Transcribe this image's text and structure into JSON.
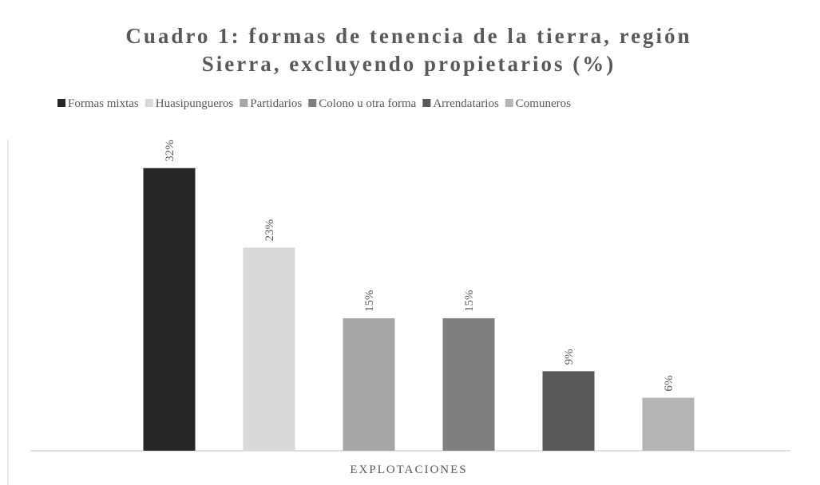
{
  "chart_data": {
    "type": "bar",
    "title": "Cuadro 1: formas de tenencia de la tierra, región Sierra, excluyendo propietarios (%)",
    "title_lines": [
      "Cuadro 1: formas de tenencia de la tierra, región",
      "Sierra, excluyendo propietarios (%)"
    ],
    "categories": [
      "EXPLOTACIONES"
    ],
    "series": [
      {
        "name": "Formas mixtas",
        "color": "#262626",
        "values": [
          32
        ],
        "value_labels": [
          "32%"
        ]
      },
      {
        "name": "Huasipungueros",
        "color": "#d9d9d9",
        "values": [
          23
        ],
        "value_labels": [
          "23%"
        ]
      },
      {
        "name": "Partidarios",
        "color": "#a6a6a6",
        "values": [
          15
        ],
        "value_labels": [
          "15%"
        ]
      },
      {
        "name": "Colono u otra forma",
        "color": "#7f7f7f",
        "values": [
          15
        ],
        "value_labels": [
          "15%"
        ]
      },
      {
        "name": "Arrendatarios",
        "color": "#595959",
        "values": [
          9
        ],
        "value_labels": [
          "9%"
        ]
      },
      {
        "name": "Comuneros",
        "color": "#b4b4b4",
        "values": [
          6
        ],
        "value_labels": [
          "6%"
        ]
      }
    ],
    "legend": "top"
  }
}
